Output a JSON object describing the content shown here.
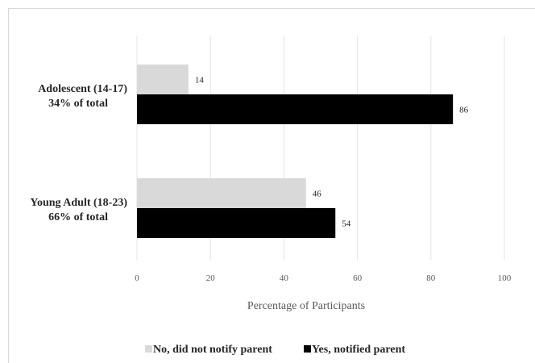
{
  "chart_data": {
    "type": "bar",
    "orientation": "horizontal",
    "title": "",
    "xlabel": "Percentage of Participants",
    "ylabel": "",
    "xlim": [
      0,
      100
    ],
    "x_ticks": [
      0,
      20,
      40,
      60,
      80,
      100
    ],
    "grid": "vertical",
    "legend_position": "bottom",
    "categories": [
      {
        "line1": "Adolescent (14-17)",
        "line2": "34% of total"
      },
      {
        "line1": "Young Adult (18-23)",
        "line2": "66% of total"
      }
    ],
    "series": [
      {
        "name": "No, did not notify parent",
        "color": "#d9d9d9",
        "values": [
          14,
          46
        ]
      },
      {
        "name": "Yes, notified parent",
        "color": "#000000",
        "values": [
          86,
          54
        ]
      }
    ]
  }
}
